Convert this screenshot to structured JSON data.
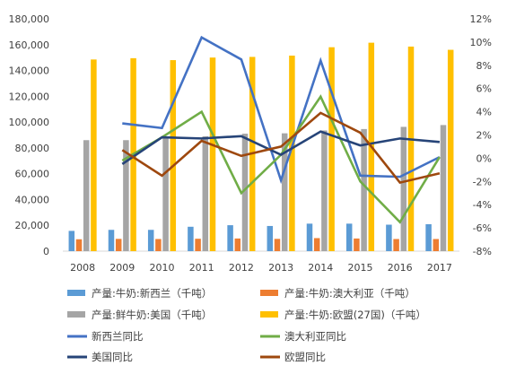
{
  "chart_data": {
    "type": "bar",
    "categories": [
      "2008",
      "2009",
      "2010",
      "2011",
      "2012",
      "2013",
      "2014",
      "2015",
      "2016",
      "2017"
    ],
    "y_left": {
      "min": 0,
      "max": 180000,
      "ticks": [
        0,
        20000,
        40000,
        60000,
        80000,
        100000,
        120000,
        140000,
        160000,
        180000
      ],
      "tick_labels": [
        "0",
        "20,000",
        "40,000",
        "60,000",
        "80,000",
        "100,000",
        "120,000",
        "140,000",
        "160,000",
        "180,000"
      ]
    },
    "y_right": {
      "min": -8,
      "max": 12,
      "ticks": [
        -8,
        -6,
        -4,
        -2,
        0,
        2,
        4,
        6,
        8,
        10,
        12
      ],
      "tick_labels": [
        "-8%",
        "-6%",
        "-4%",
        "-2%",
        "0%",
        "2%",
        "4%",
        "6%",
        "8%",
        "10%",
        "12%"
      ]
    },
    "bar_series": [
      {
        "name": "产量:牛奶:新西兰（千吨）",
        "color": "#5B9BD5",
        "values": [
          15700,
          16500,
          16500,
          18900,
          20100,
          19500,
          21300,
          21300,
          20500,
          20900
        ]
      },
      {
        "name": "产量:牛奶:澳大利亚（千吨）",
        "color": "#ED7D31",
        "values": [
          9200,
          9500,
          9400,
          9600,
          9800,
          9500,
          10100,
          9800,
          9400,
          9400
        ]
      },
      {
        "name": "产量:鲜牛奶:美国（千吨）",
        "color": "#A5A5A5",
        "values": [
          86000,
          86000,
          87500,
          89000,
          91000,
          91300,
          93500,
          94600,
          96300,
          97700
        ]
      },
      {
        "name": "产量:牛奶:欧盟(27国)（千吨）",
        "color": "#FFC000",
        "values": [
          148500,
          149500,
          148000,
          150000,
          150500,
          151500,
          158000,
          161500,
          158500,
          156000
        ]
      }
    ],
    "line_series": [
      {
        "name": "新西兰同比",
        "color": "#4472C4",
        "x": [
          "2009",
          "2010",
          "2011",
          "2012",
          "2013",
          "2014",
          "2015",
          "2016",
          "2017"
        ],
        "values": [
          3.0,
          2.6,
          10.4,
          8.5,
          -1.9,
          8.4,
          -1.5,
          -1.6,
          0.1
        ]
      },
      {
        "name": "澳大利亚同比",
        "color": "#70AD47",
        "x": [
          "2009",
          "2010",
          "2011",
          "2012",
          "2013",
          "2014",
          "2015",
          "2016",
          "2017"
        ],
        "values": [
          -0.2,
          1.8,
          4.0,
          -3.0,
          0.3,
          5.3,
          -2.0,
          -5.5,
          0.1
        ]
      },
      {
        "name": "美国同比",
        "color": "#264478",
        "x": [
          "2009",
          "2010",
          "2011",
          "2012",
          "2013",
          "2014",
          "2015",
          "2016",
          "2017"
        ],
        "values": [
          -0.5,
          1.8,
          1.7,
          1.9,
          0.3,
          2.3,
          1.1,
          1.7,
          1.4
        ]
      },
      {
        "name": "欧盟同比",
        "color": "#9E480E",
        "x": [
          "2009",
          "2010",
          "2011",
          "2012",
          "2013",
          "2014",
          "2015",
          "2016",
          "2017"
        ],
        "values": [
          0.7,
          -1.5,
          1.5,
          0.2,
          1.0,
          3.9,
          2.2,
          -2.1,
          -1.3
        ]
      }
    ],
    "legend_position": "bottom",
    "grid": false
  }
}
